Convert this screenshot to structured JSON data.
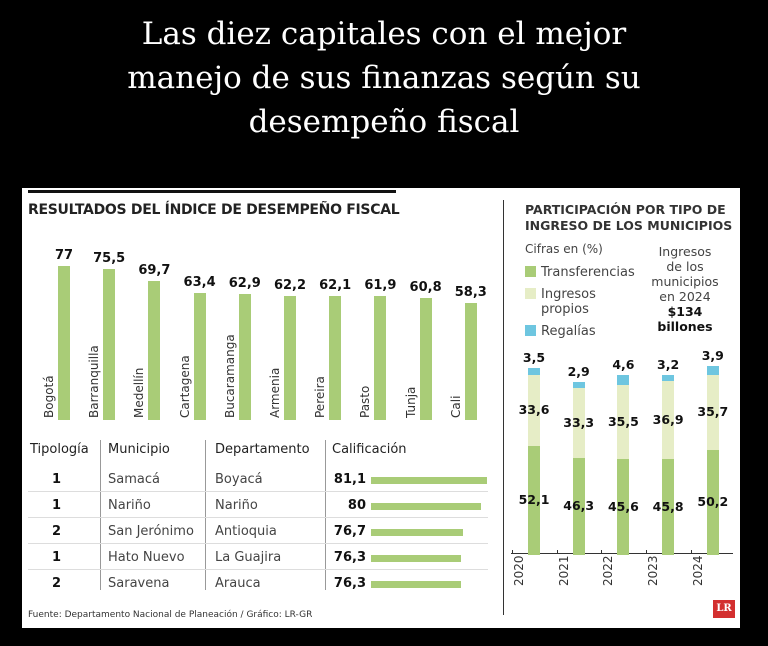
{
  "headline": [
    "Las diez capitales con el mejor",
    "manejo de sus finanzas según su",
    "desempeño fiscal"
  ],
  "chart_data": [
    {
      "type": "bar",
      "title": "RESULTADOS DEL ÍNDICE DE DESEMPEÑO FISCAL",
      "categories": [
        "Bogotá",
        "Barranquilla",
        "Medellín",
        "Cartagena",
        "Bucaramanga",
        "Armenia",
        "Pereira",
        "Pasto",
        "Tunja",
        "Cali"
      ],
      "values": [
        77,
        75.5,
        69.7,
        63.4,
        62.9,
        62.2,
        62.1,
        61.9,
        60.8,
        58.3
      ],
      "labels": [
        "77",
        "75,5",
        "69,7",
        "63,4",
        "62,9",
        "62,2",
        "62,1",
        "61,9",
        "60,8",
        "58,3"
      ],
      "color": "#a9cc77"
    },
    {
      "type": "table",
      "headers": [
        "Tipología",
        "Municipio",
        "Departamento",
        "Calificación"
      ],
      "rows": [
        {
          "tipologia": "1",
          "municipio": "Samacá",
          "departamento": "Boyacá",
          "calificacion": "81,1",
          "value": 81.1
        },
        {
          "tipologia": "1",
          "municipio": "Nariño",
          "departamento": "Nariño",
          "calificacion": "80",
          "value": 80
        },
        {
          "tipologia": "2",
          "municipio": "San Jerónimo",
          "departamento": "Antioquia",
          "calificacion": "76,7",
          "value": 76.7
        },
        {
          "tipologia": "1",
          "municipio": "Hato Nuevo",
          "departamento": "La Guajira",
          "calificacion": "76,3",
          "value": 76.3
        },
        {
          "tipologia": "2",
          "municipio": "Saravena",
          "departamento": "Arauca",
          "calificacion": "76,3",
          "value": 76.3
        }
      ]
    },
    {
      "type": "bar",
      "stacked": true,
      "title": [
        "PARTICIPACIÓN POR TIPO DE",
        "INGRESO DE LOS MUNICIPIOS"
      ],
      "subtitle": "Cifras en (%)",
      "categories": [
        "2020",
        "2021",
        "2022",
        "2023",
        "2024"
      ],
      "series": [
        {
          "name": "Transferencias",
          "values": [
            52.1,
            46.3,
            45.6,
            45.8,
            50.2
          ],
          "labels": [
            "52,1",
            "46,3",
            "45,6",
            "45,8",
            "50,2"
          ],
          "color": "#a9cc77"
        },
        {
          "name": "Ingresos propios",
          "values": [
            33.6,
            33.3,
            35.5,
            36.9,
            35.7
          ],
          "labels": [
            "33,6",
            "33,3",
            "35,5",
            "36,9",
            "35,7"
          ],
          "color": "#e6edc6"
        },
        {
          "name": "Regalías",
          "values": [
            3.5,
            2.9,
            4.6,
            3.2,
            3.9
          ],
          "labels": [
            "3,5",
            "2,9",
            "4,6",
            "3,2",
            "3,9"
          ],
          "color": "#6ec6e0"
        }
      ],
      "legend_names": [
        "Transferencias",
        "Ingresos",
        "propios",
        "Regalías"
      ],
      "annotation": [
        "Ingresos",
        "de los",
        "municipios",
        "en 2024"
      ],
      "annotation_value": [
        "$134",
        "billones"
      ]
    }
  ],
  "source": "Fuente: Departamento Nacional de Planeación / Gráfico: LR-GR",
  "logo": "LR"
}
